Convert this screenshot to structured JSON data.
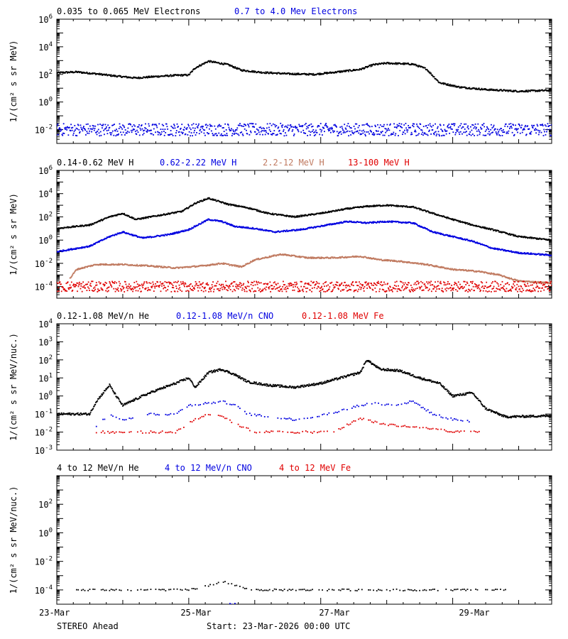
{
  "footer": {
    "mission": "STEREO Ahead",
    "start": "Start: 23-Mar-2026 00:00 UTC"
  },
  "chart_data": [
    {
      "type": "scatter",
      "yscale": "log",
      "ylim": [
        0.001,
        1000000
      ],
      "yticks": [
        {
          "v": 0.01,
          "base": "10",
          "exp": "-2"
        },
        {
          "v": 1,
          "base": "10",
          "exp": "0"
        },
        {
          "v": 100,
          "base": "10",
          "exp": "2"
        },
        {
          "v": 10000,
          "base": "10",
          "exp": "4"
        },
        {
          "v": 1000000,
          "base": "10",
          "exp": "6"
        }
      ],
      "ylabel": "1/(cm² s sr MeV)",
      "xlim": [
        0,
        7.5
      ],
      "x_unit": "days since 23-Mar-2026 00:00 UTC",
      "xticks": [
        "23-Mar",
        "25-Mar",
        "27-Mar",
        "29-Mar"
      ],
      "series": [
        {
          "name": "0.035 to 0.065 MeV Electrons",
          "color": "#000000",
          "points": [
            [
              0,
              130
            ],
            [
              0.3,
              150
            ],
            [
              0.6,
              110
            ],
            [
              0.9,
              75
            ],
            [
              1.2,
              55
            ],
            [
              1.5,
              70
            ],
            [
              1.8,
              85
            ],
            [
              2.0,
              90
            ],
            [
              2.1,
              300
            ],
            [
              2.3,
              900
            ],
            [
              2.6,
              500
            ],
            [
              2.8,
              200
            ],
            [
              3.1,
              140
            ],
            [
              3.5,
              110
            ],
            [
              3.9,
              100
            ],
            [
              4.2,
              140
            ],
            [
              4.6,
              230
            ],
            [
              4.8,
              500
            ],
            [
              5.0,
              650
            ],
            [
              5.4,
              550
            ],
            [
              5.6,
              250
            ],
            [
              5.8,
              25
            ],
            [
              6.1,
              12
            ],
            [
              6.5,
              8
            ],
            [
              7.0,
              6
            ],
            [
              7.5,
              7
            ]
          ]
        },
        {
          "name": "0.7 to 4.0 Mev Electrons",
          "color": "#0000e0",
          "points": [
            [
              0,
              0.01
            ],
            [
              1,
              0.01
            ],
            [
              2,
              0.01
            ],
            [
              3,
              0.01
            ],
            [
              4,
              0.01
            ],
            [
              5,
              0.01
            ],
            [
              6,
              0.01
            ],
            [
              7,
              0.01
            ],
            [
              7.5,
              0.01
            ]
          ]
        }
      ]
    },
    {
      "type": "scatter",
      "yscale": "log",
      "ylim": [
        1e-05,
        1000000
      ],
      "yticks": [
        {
          "v": 0.0001,
          "base": "10",
          "exp": "-4"
        },
        {
          "v": 0.01,
          "base": "10",
          "exp": "-2"
        },
        {
          "v": 1,
          "base": "10",
          "exp": "0"
        },
        {
          "v": 100,
          "base": "10",
          "exp": "2"
        },
        {
          "v": 10000,
          "base": "10",
          "exp": "4"
        },
        {
          "v": 1000000,
          "base": "10",
          "exp": "6"
        }
      ],
      "ylabel": "1/(cm² s sr MeV)",
      "xlim": [
        0,
        7.5
      ],
      "xticks": [
        "23-Mar",
        "25-Mar",
        "27-Mar",
        "29-Mar"
      ],
      "series": [
        {
          "name": "0.14-0.62 MeV H",
          "color": "#000000",
          "points": [
            [
              0,
              10
            ],
            [
              0.5,
              20
            ],
            [
              0.8,
              100
            ],
            [
              1.0,
              200
            ],
            [
              1.2,
              60
            ],
            [
              1.6,
              150
            ],
            [
              1.9,
              300
            ],
            [
              2.1,
              1500
            ],
            [
              2.3,
              4000
            ],
            [
              2.6,
              1200
            ],
            [
              2.9,
              600
            ],
            [
              3.2,
              200
            ],
            [
              3.6,
              100
            ],
            [
              4.0,
              200
            ],
            [
              4.4,
              500
            ],
            [
              4.7,
              800
            ],
            [
              5.0,
              1000
            ],
            [
              5.4,
              700
            ],
            [
              5.7,
              200
            ],
            [
              6.0,
              60
            ],
            [
              6.3,
              20
            ],
            [
              6.6,
              8
            ],
            [
              7.0,
              2
            ],
            [
              7.5,
              1
            ]
          ]
        },
        {
          "name": "0.62-2.22 MeV H",
          "color": "#0000e0",
          "points": [
            [
              0,
              0.1
            ],
            [
              0.5,
              0.3
            ],
            [
              0.8,
              2
            ],
            [
              1.0,
              5
            ],
            [
              1.3,
              1.5
            ],
            [
              1.7,
              3
            ],
            [
              2.0,
              8
            ],
            [
              2.3,
              60
            ],
            [
              2.5,
              40
            ],
            [
              2.7,
              15
            ],
            [
              3.0,
              10
            ],
            [
              3.3,
              5
            ],
            [
              3.7,
              8
            ],
            [
              4.1,
              20
            ],
            [
              4.4,
              40
            ],
            [
              4.7,
              30
            ],
            [
              5.0,
              40
            ],
            [
              5.4,
              30
            ],
            [
              5.7,
              5
            ],
            [
              6.0,
              2
            ],
            [
              6.3,
              0.8
            ],
            [
              6.6,
              0.2
            ],
            [
              7.0,
              0.08
            ],
            [
              7.5,
              0.05
            ]
          ]
        },
        {
          "name": "2.2-12 MeV H",
          "color": "#c07a60",
          "points": [
            [
              0.2,
              0.0005
            ],
            [
              0.3,
              0.003
            ],
            [
              0.6,
              0.008
            ],
            [
              1.0,
              0.008
            ],
            [
              1.4,
              0.006
            ],
            [
              1.8,
              0.004
            ],
            [
              2.2,
              0.006
            ],
            [
              2.5,
              0.01
            ],
            [
              2.8,
              0.005
            ],
            [
              3.0,
              0.02
            ],
            [
              3.4,
              0.06
            ],
            [
              3.8,
              0.03
            ],
            [
              4.2,
              0.03
            ],
            [
              4.6,
              0.04
            ],
            [
              4.9,
              0.02
            ],
            [
              5.2,
              0.015
            ],
            [
              5.6,
              0.008
            ],
            [
              6.0,
              0.003
            ],
            [
              6.4,
              0.002
            ],
            [
              6.7,
              0.001
            ],
            [
              7.0,
              0.0003
            ],
            [
              7.5,
              0.0002
            ]
          ]
        },
        {
          "name": "13-100 MeV H",
          "color": "#e00000",
          "points": [
            [
              0,
              0.0001
            ],
            [
              1,
              0.0001
            ],
            [
              2,
              0.0001
            ],
            [
              3,
              0.0001
            ],
            [
              4,
              0.0001
            ],
            [
              5,
              0.0001
            ],
            [
              6,
              0.0001
            ],
            [
              7,
              0.0001
            ],
            [
              7.5,
              0.0001
            ]
          ]
        }
      ]
    },
    {
      "type": "scatter",
      "yscale": "log",
      "ylim": [
        0.001,
        10000
      ],
      "yticks": [
        {
          "v": 0.001,
          "base": "10",
          "exp": "-3"
        },
        {
          "v": 0.01,
          "base": "10",
          "exp": "-2"
        },
        {
          "v": 0.1,
          "base": "10",
          "exp": "-1"
        },
        {
          "v": 1,
          "base": "10",
          "exp": "0"
        },
        {
          "v": 10,
          "base": "10",
          "exp": "1"
        },
        {
          "v": 100,
          "base": "10",
          "exp": "2"
        },
        {
          "v": 1000,
          "base": "10",
          "exp": "3"
        },
        {
          "v": 10000,
          "base": "10",
          "exp": "4"
        }
      ],
      "ylabel": "1/(cm² s sr MeV/nuc.)",
      "xlim": [
        0,
        7.5
      ],
      "xticks": [
        "23-Mar",
        "25-Mar",
        "27-Mar",
        "29-Mar"
      ],
      "series": [
        {
          "name": "0.12-1.08 MeV/n He",
          "color": "#000000",
          "points": [
            [
              0,
              0.1
            ],
            [
              0.5,
              0.1
            ],
            [
              0.6,
              0.5
            ],
            [
              0.8,
              4
            ],
            [
              0.9,
              1
            ],
            [
              1.0,
              0.3
            ],
            [
              1.3,
              1
            ],
            [
              1.5,
              2
            ],
            [
              1.8,
              5
            ],
            [
              2.0,
              10
            ],
            [
              2.1,
              3
            ],
            [
              2.3,
              20
            ],
            [
              2.5,
              30
            ],
            [
              2.7,
              15
            ],
            [
              2.9,
              6
            ],
            [
              3.2,
              4
            ],
            [
              3.6,
              3
            ],
            [
              4.0,
              5
            ],
            [
              4.3,
              10
            ],
            [
              4.6,
              20
            ],
            [
              4.7,
              100
            ],
            [
              4.9,
              30
            ],
            [
              5.2,
              25
            ],
            [
              5.5,
              10
            ],
            [
              5.8,
              5
            ],
            [
              6.0,
              1
            ],
            [
              6.3,
              1.5
            ],
            [
              6.5,
              0.2
            ],
            [
              6.8,
              0.07
            ],
            [
              7.5,
              0.08
            ]
          ]
        },
        {
          "name": "0.12-1.08 MeV/n CNO",
          "color": "#0000e0",
          "points": [
            [
              0.6,
              0.02
            ],
            [
              0.8,
              0.1
            ],
            [
              1.0,
              0.05
            ],
            [
              1.4,
              0.1
            ],
            [
              1.8,
              0.1
            ],
            [
              2.0,
              0.3
            ],
            [
              2.3,
              0.4
            ],
            [
              2.5,
              0.5
            ],
            [
              2.7,
              0.3
            ],
            [
              2.9,
              0.1
            ],
            [
              3.2,
              0.07
            ],
            [
              3.6,
              0.05
            ],
            [
              4.0,
              0.08
            ],
            [
              4.3,
              0.15
            ],
            [
              4.6,
              0.3
            ],
            [
              4.8,
              0.4
            ],
            [
              5.1,
              0.3
            ],
            [
              5.4,
              0.5
            ],
            [
              5.7,
              0.1
            ],
            [
              6.0,
              0.05
            ],
            [
              6.3,
              0.04
            ]
          ]
        },
        {
          "name": "0.12-1.08 MeV Fe",
          "color": "#e00000",
          "points": [
            [
              0.6,
              0.01
            ],
            [
              1.2,
              0.01
            ],
            [
              1.8,
              0.01
            ],
            [
              2.1,
              0.05
            ],
            [
              2.3,
              0.1
            ],
            [
              2.5,
              0.08
            ],
            [
              2.7,
              0.03
            ],
            [
              3.0,
              0.01
            ],
            [
              3.6,
              0.01
            ],
            [
              4.2,
              0.01
            ],
            [
              4.6,
              0.06
            ],
            [
              4.9,
              0.03
            ],
            [
              5.3,
              0.02
            ],
            [
              5.7,
              0.015
            ],
            [
              6.0,
              0.01
            ],
            [
              6.4,
              0.01
            ]
          ]
        }
      ]
    },
    {
      "type": "scatter",
      "yscale": "log",
      "ylim": [
        1e-05,
        10000
      ],
      "yticks": [
        {
          "v": 0.0001,
          "base": "10",
          "exp": "-4"
        },
        {
          "v": 0.01,
          "base": "10",
          "exp": "-2"
        },
        {
          "v": 1,
          "base": "10",
          "exp": "0"
        },
        {
          "v": 100,
          "base": "10",
          "exp": "2"
        }
      ],
      "ylabel": "1/(cm² s sr MeV/nuc.)",
      "xlim": [
        0,
        7.5
      ],
      "xticks": [
        "23-Mar",
        "25-Mar",
        "27-Mar",
        "29-Mar"
      ],
      "series": [
        {
          "name": "4 to 12 MeV/n He",
          "color": "#000000",
          "points": [
            [
              0.3,
              0.0001
            ],
            [
              0.7,
              0.0001
            ],
            [
              1.0,
              0.0001
            ],
            [
              1.5,
              0.0001
            ],
            [
              2.0,
              0.0001
            ],
            [
              2.3,
              0.0002
            ],
            [
              2.5,
              0.0004
            ],
            [
              2.7,
              0.0002
            ],
            [
              3.0,
              0.0001
            ],
            [
              3.5,
              0.0001
            ],
            [
              4.0,
              0.0001
            ],
            [
              4.5,
              0.0001
            ],
            [
              5.0,
              0.0001
            ],
            [
              5.5,
              0.0001
            ],
            [
              6.0,
              0.0001
            ],
            [
              6.5,
              0.0001
            ],
            [
              6.8,
              0.0001
            ]
          ]
        },
        {
          "name": "4 to 12 MeV/n CNO",
          "color": "#0000e0",
          "points": [
            [
              2.6,
              1e-05
            ],
            [
              2.7,
              1e-05
            ]
          ]
        },
        {
          "name": "4 to 12 MeV Fe",
          "color": "#e00000",
          "points": [
            [
              5.3,
              1e-05
            ]
          ]
        }
      ]
    }
  ]
}
